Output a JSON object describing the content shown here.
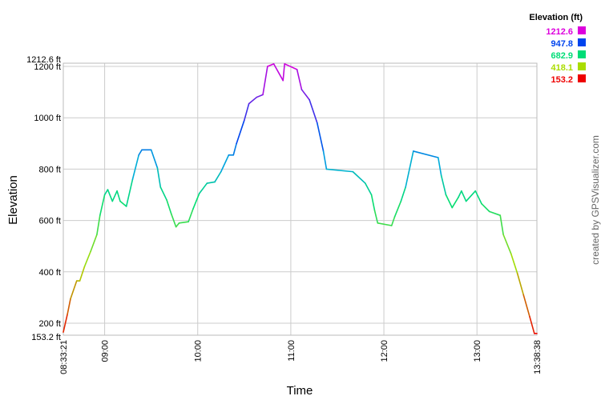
{
  "chart_data": {
    "type": "line",
    "xlabel": "Time",
    "ylabel": "Elevation",
    "credit": "created by GPSVisualizer.com",
    "xlim": [
      "08:33:21",
      "13:38:38"
    ],
    "ylim": [
      153.2,
      1212.6
    ],
    "grid": true,
    "x_ticks": [
      "08:33:21",
      "09:00",
      "10:00",
      "11:00",
      "12:00",
      "13:00",
      "13:38:38"
    ],
    "y_ticks": [
      {
        "value": 1212.6,
        "label": "1212.6 ft"
      },
      {
        "value": 1200,
        "label": "1200 ft"
      },
      {
        "value": 1000,
        "label": "1000 ft"
      },
      {
        "value": 800,
        "label": "800 ft"
      },
      {
        "value": 600,
        "label": "600 ft"
      },
      {
        "value": 400,
        "label": "400 ft"
      },
      {
        "value": 200,
        "label": "200 ft"
      },
      {
        "value": 153.2,
        "label": "153.2 ft"
      }
    ],
    "legend": {
      "title": "Elevation (ft)",
      "placement": "top-right",
      "entries": [
        {
          "label": "1212.6",
          "value": 1212.6,
          "color": "#dd00dd"
        },
        {
          "label": "947.8",
          "value": 947.8,
          "color": "#0044ee"
        },
        {
          "label": "682.9",
          "value": 682.9,
          "color": "#00dd77"
        },
        {
          "label": "418.1",
          "value": 418.1,
          "color": "#aadd00"
        },
        {
          "label": "153.2",
          "value": 153.2,
          "color": "#ee0000"
        }
      ]
    },
    "series": [
      {
        "x": [
          "08:33:21",
          "08:36",
          "08:38",
          "08:42",
          "08:44",
          "08:47",
          "08:51",
          "08:55",
          "08:57",
          "09:00",
          "09:02",
          "09:05",
          "09:08",
          "09:10",
          "09:14",
          "09:18",
          "09:22",
          "09:24",
          "09:30",
          "09:34",
          "09:36",
          "09:40",
          "09:43",
          "09:46",
          "09:48",
          "09:54",
          "09:57",
          "10:01",
          "10:06",
          "10:11",
          "10:15",
          "10:20",
          "10:23",
          "10:25",
          "10:30",
          "10:33",
          "10:38",
          "10:42",
          "10:45",
          "10:49",
          "10:55",
          "10:56",
          "11:04",
          "11:07",
          "11:12",
          "11:17",
          "11:21",
          "11:23",
          "11:40",
          "11:48",
          "11:52",
          "11:54",
          "11:56",
          "12:05",
          "12:07",
          "12:11",
          "12:14",
          "12:19",
          "12:35",
          "12:37",
          "12:40",
          "12:44",
          "12:48",
          "12:50",
          "12:53",
          "12:59",
          "13:03",
          "13:08",
          "13:15",
          "13:17",
          "13:22",
          "13:26",
          "13:30",
          "13:34",
          "13:37",
          "13:38:38"
        ],
        "y": [
          165,
          235,
          295,
          365,
          365,
          420,
          480,
          545,
          620,
          700,
          720,
          675,
          715,
          675,
          655,
          760,
          855,
          875,
          875,
          805,
          730,
          680,
          625,
          575,
          590,
          595,
          645,
          705,
          745,
          750,
          790,
          855,
          855,
          900,
          990,
          1055,
          1080,
          1090,
          1200,
          1210,
          1145,
          1210,
          1188,
          1110,
          1070,
          980,
          870,
          800,
          790,
          745,
          700,
          640,
          590,
          580,
          615,
          675,
          730,
          870,
          845,
          775,
          700,
          650,
          690,
          715,
          675,
          715,
          665,
          635,
          620,
          545,
          470,
          395,
          310,
          225,
          160,
          160
        ]
      }
    ]
  }
}
